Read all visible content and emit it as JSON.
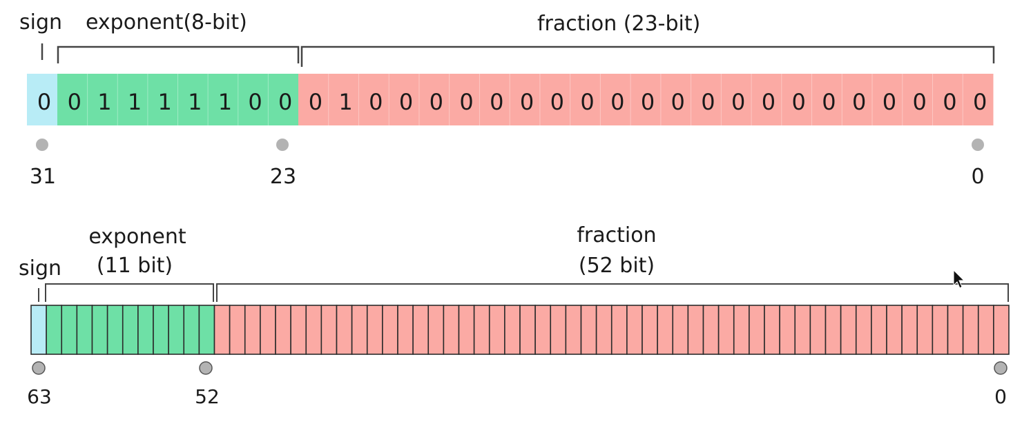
{
  "float32": {
    "labels": {
      "sign": "sign",
      "exponent": "exponent(8-bit)",
      "fraction": "fraction (23-bit)"
    },
    "bits": {
      "sign": [
        "0"
      ],
      "exponent": [
        "0",
        "1",
        "1",
        "1",
        "1",
        "1",
        "0",
        "0"
      ],
      "fraction": [
        "0",
        "1",
        "0",
        "0",
        "0",
        "0",
        "0",
        "0",
        "0",
        "0",
        "0",
        "0",
        "0",
        "0",
        "0",
        "0",
        "0",
        "0",
        "0",
        "0",
        "0",
        "0",
        "0"
      ]
    },
    "positions": [
      "31",
      "23",
      "0"
    ]
  },
  "float64": {
    "labels": {
      "sign": "sign",
      "exponent_line1": "exponent",
      "exponent_line2": "(11 bit)",
      "fraction_line1": "fraction",
      "fraction_line2": "(52 bit)"
    },
    "bit_counts": {
      "sign": 1,
      "exponent": 11,
      "fraction": 52
    },
    "positions": [
      "63",
      "52",
      "0"
    ]
  },
  "colors": {
    "sign": "#b8ecf6",
    "exponent": "#6ee0a6",
    "fraction": "#fbaaa4",
    "bracket": "#444444",
    "marker": "#b3b3b3",
    "cell_border_64": "#2b2b2b"
  }
}
